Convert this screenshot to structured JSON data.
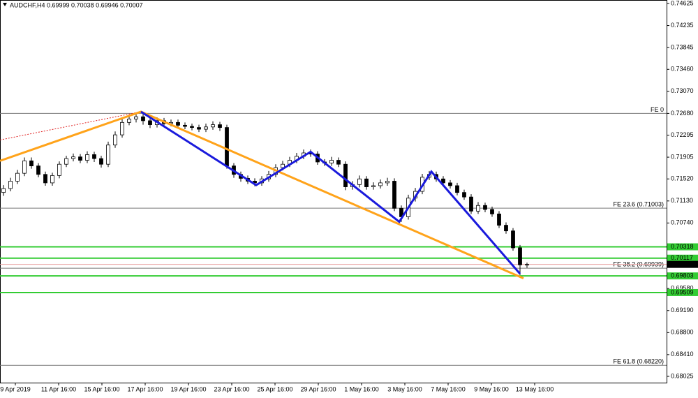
{
  "chart_data": {
    "type": "candlestick",
    "title": "AUDCHF,H4  0.69999 0.70038 0.69946 0.70007",
    "open": [
      0.7128,
      0.7135,
      0.7148,
      0.7162,
      0.7184,
      0.7175,
      0.716,
      0.7145,
      0.7158,
      0.7178,
      0.7188,
      0.7191,
      0.7185,
      0.7195,
      0.7188,
      0.7178,
      0.7212,
      0.723,
      0.7252,
      0.7258,
      0.7262,
      0.7255,
      0.7248,
      0.7255,
      0.725,
      0.7252,
      0.7247,
      0.7245,
      0.7243,
      0.724,
      0.7244,
      0.7248,
      0.7243,
      0.7175,
      0.716,
      0.7153,
      0.7148,
      0.7145,
      0.7152,
      0.716,
      0.7172,
      0.7178,
      0.7185,
      0.7192,
      0.7198,
      0.7196,
      0.7182,
      0.718,
      0.7185,
      0.7178,
      0.7138,
      0.7142,
      0.7152,
      0.7138,
      0.714,
      0.7145,
      0.7148,
      0.71,
      0.7085,
      0.7118,
      0.713,
      0.7155,
      0.716,
      0.7152,
      0.7145,
      0.714,
      0.7128,
      0.712,
      0.7095,
      0.7105,
      0.7098,
      0.709,
      0.707,
      0.706,
      0.703,
      0.69999
    ],
    "high": [
      0.7141,
      0.7154,
      0.7168,
      0.719,
      0.719,
      0.718,
      0.7165,
      0.7163,
      0.7183,
      0.7193,
      0.7197,
      0.7196,
      0.7201,
      0.72,
      0.7193,
      0.7218,
      0.7236,
      0.7258,
      0.7264,
      0.7268,
      0.7267,
      0.726,
      0.7261,
      0.726,
      0.7257,
      0.7257,
      0.7252,
      0.725,
      0.7248,
      0.725,
      0.7254,
      0.7253,
      0.7248,
      0.718,
      0.7165,
      0.7158,
      0.7153,
      0.7157,
      0.7166,
      0.7178,
      0.7184,
      0.7191,
      0.7198,
      0.7204,
      0.7204,
      0.7201,
      0.7187,
      0.7191,
      0.719,
      0.7183,
      0.7148,
      0.7158,
      0.7157,
      0.7146,
      0.7151,
      0.7154,
      0.7153,
      0.7105,
      0.7124,
      0.7136,
      0.7161,
      0.7166,
      0.7165,
      0.7157,
      0.715,
      0.7145,
      0.7133,
      0.7125,
      0.7111,
      0.711,
      0.7103,
      0.7095,
      0.7075,
      0.7065,
      0.7035,
      0.70038
    ],
    "low": [
      0.7122,
      0.713,
      0.7143,
      0.7157,
      0.717,
      0.7155,
      0.714,
      0.714,
      0.7153,
      0.7173,
      0.7183,
      0.718,
      0.718,
      0.7182,
      0.7172,
      0.7173,
      0.7207,
      0.7225,
      0.7247,
      0.7252,
      0.7248,
      0.7242,
      0.7243,
      0.7245,
      0.7245,
      0.7242,
      0.724,
      0.7238,
      0.7235,
      0.7235,
      0.7239,
      0.7237,
      0.717,
      0.7154,
      0.7147,
      0.7143,
      0.7139,
      0.714,
      0.7147,
      0.7155,
      0.7167,
      0.7173,
      0.718,
      0.7187,
      0.7191,
      0.7177,
      0.7175,
      0.7175,
      0.7173,
      0.7132,
      0.7133,
      0.7137,
      0.7133,
      0.7133,
      0.7135,
      0.714,
      0.7095,
      0.7076,
      0.708,
      0.7112,
      0.7125,
      0.715,
      0.7147,
      0.714,
      0.7135,
      0.7123,
      0.7115,
      0.709,
      0.709,
      0.7093,
      0.7085,
      0.7065,
      0.7055,
      0.7025,
      0.6982,
      0.69946
    ],
    "close": [
      0.7135,
      0.7148,
      0.7162,
      0.7184,
      0.7175,
      0.716,
      0.7145,
      0.7158,
      0.7178,
      0.7188,
      0.7191,
      0.7185,
      0.7195,
      0.7188,
      0.7178,
      0.7212,
      0.723,
      0.7252,
      0.7258,
      0.7262,
      0.7255,
      0.7248,
      0.7255,
      0.725,
      0.7252,
      0.7247,
      0.7245,
      0.7243,
      0.724,
      0.7244,
      0.7248,
      0.7243,
      0.7175,
      0.716,
      0.7153,
      0.7148,
      0.7145,
      0.7152,
      0.716,
      0.7172,
      0.7178,
      0.7185,
      0.7192,
      0.7198,
      0.7196,
      0.7182,
      0.718,
      0.7185,
      0.7178,
      0.7138,
      0.7142,
      0.7152,
      0.7138,
      0.714,
      0.7145,
      0.7148,
      0.71,
      0.7085,
      0.7118,
      0.713,
      0.7155,
      0.716,
      0.7152,
      0.7145,
      0.714,
      0.7128,
      0.712,
      0.7095,
      0.7105,
      0.7098,
      0.709,
      0.707,
      0.706,
      0.703,
      0.69999,
      0.70007
    ],
    "categories": [
      "9 Apr 2019",
      "11 Apr 16:00",
      "15 Apr 16:00",
      "17 Apr 16:00",
      "19 Apr 16:00",
      "23 Apr 16:00",
      "25 Apr 16:00",
      "29 Apr 16:00",
      "1 May 16:00",
      "3 May 16:00",
      "7 May 16:00",
      "9 May 16:00",
      "13 May 16:00"
    ],
    "ylim": [
      0.67914,
      0.74687
    ],
    "yticks": [
      0.74625,
      0.74235,
      0.73845,
      {
        "value": 0.7346,
        "label": "0.73460"
      },
      {
        "value": 0.7307,
        "label": "0.73070"
      },
      {
        "value": 0.7268,
        "label": "0.72680"
      },
      0.72295,
      0.71905,
      {
        "value": 0.7152,
        "label": "0.71520"
      },
      {
        "value": 0.7113,
        "label": "0.71130"
      },
      {
        "value": 0.7074,
        "label": "0.70740"
      },
      {
        "value": 0.6958,
        "label": "0.69580"
      },
      {
        "value": 0.6919,
        "label": "0.69190"
      },
      {
        "value": 0.688,
        "label": "0.68800"
      },
      {
        "value": 0.6841,
        "label": "0.68410"
      },
      0.68025
    ],
    "fibo_levels": [
      {
        "label": "FE 0",
        "price": 0.7268
      },
      {
        "label": "FE 23.6  (0.71003)",
        "price": 0.71003
      },
      {
        "label": "FE 38.2  (0.69939)",
        "price": 0.69939
      },
      {
        "label": "FE 61.8  (0.68220)",
        "price": 0.6822
      }
    ],
    "green_levels": {
      "color": "#33cc33",
      "values": [
        0.70318,
        0.70117,
        0.69803,
        0.69509
      ]
    },
    "current_price": 0.70007,
    "zigzag": {
      "color": "#1a1adc",
      "index": [
        19.7,
        36.2,
        44,
        56.7,
        61.3,
        74
      ],
      "price": [
        0.7271,
        0.7141,
        0.72,
        0.7076,
        0.7165,
        0.6984
      ]
    },
    "orange_lines": {
      "color": "#ffa31a",
      "index": [
        -0.5,
        19.7,
        74.5
      ],
      "price": [
        0.7184,
        0.7271,
        0.6976
      ]
    },
    "dotted_line": {
      "color": "#e02020",
      "index": [
        -0.5,
        19.7
      ],
      "price": [
        0.7221,
        0.7271
      ]
    }
  }
}
